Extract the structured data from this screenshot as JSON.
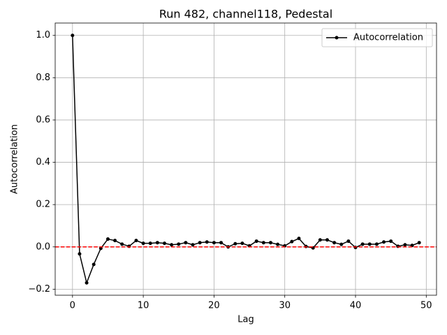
{
  "chart_data": {
    "type": "line",
    "title": "Run 482, channel118, Pedestal",
    "xlabel": "Lag",
    "ylabel": "Autocorrelation",
    "x": [
      0,
      1,
      2,
      3,
      4,
      5,
      6,
      7,
      8,
      9,
      10,
      11,
      12,
      13,
      14,
      15,
      16,
      17,
      18,
      19,
      20,
      21,
      22,
      23,
      24,
      25,
      26,
      27,
      28,
      29,
      30,
      31,
      32,
      33,
      34,
      35,
      36,
      37,
      38,
      39,
      40,
      41,
      42,
      43,
      44,
      45,
      46,
      47,
      48,
      49
    ],
    "series": [
      {
        "name": "Autocorrelation",
        "color": "#000000",
        "values": [
          1.0,
          -0.033,
          -0.17,
          -0.083,
          -0.007,
          0.037,
          0.03,
          0.013,
          0.003,
          0.03,
          0.017,
          0.017,
          0.02,
          0.017,
          0.01,
          0.013,
          0.02,
          0.01,
          0.02,
          0.023,
          0.02,
          0.02,
          0.0,
          0.015,
          0.017,
          0.005,
          0.027,
          0.02,
          0.02,
          0.012,
          0.005,
          0.025,
          0.04,
          0.002,
          -0.005,
          0.033,
          0.033,
          0.02,
          0.012,
          0.027,
          -0.003,
          0.013,
          0.013,
          0.013,
          0.023,
          0.027,
          0.003,
          0.01,
          0.007,
          0.02
        ]
      }
    ],
    "hline": 0,
    "hline_color": "#ff0000",
    "xlim": [
      -2.45,
      51.45
    ],
    "xticks": [
      0,
      10,
      20,
      30,
      40,
      50
    ],
    "ylim": [
      -0.2285,
      1.0585
    ],
    "yticks": [
      {
        "value": -0.2,
        "label": "−0.2"
      },
      {
        "value": 0,
        "label": "0.0"
      },
      {
        "value": 0.2,
        "label": "0.2"
      },
      {
        "value": 0.4,
        "label": "0.4"
      },
      {
        "value": 0.6,
        "label": "0.6"
      },
      {
        "value": 0.8,
        "label": "0.8"
      },
      {
        "value": 1.0,
        "label": "1.0"
      }
    ],
    "grid": true,
    "legend": "upper right"
  }
}
